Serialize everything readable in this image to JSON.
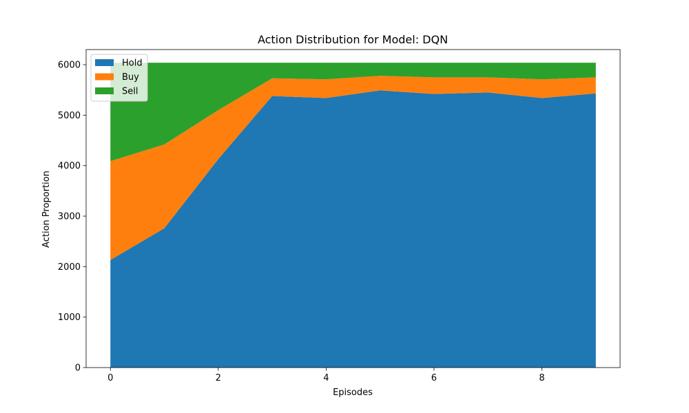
{
  "chart_data": {
    "type": "area",
    "stacked": true,
    "title": "Action Distribution for Model: DQN",
    "xlabel": "Episodes",
    "ylabel": "Action Proportion",
    "x": [
      0,
      1,
      2,
      3,
      4,
      5,
      6,
      7,
      8,
      9
    ],
    "xlim": [
      -0.45,
      9.45
    ],
    "ylim": [
      0,
      6300
    ],
    "xticks": [
      0,
      2,
      4,
      6,
      8
    ],
    "yticks": [
      0,
      1000,
      2000,
      3000,
      4000,
      5000,
      6000
    ],
    "series": [
      {
        "name": "Hold",
        "color": "#1f77b4",
        "values": [
          2130,
          2760,
          4130,
          5380,
          5340,
          5490,
          5420,
          5450,
          5340,
          5430
        ]
      },
      {
        "name": "Buy",
        "color": "#ff7f0e",
        "values": [
          1960,
          1660,
          970,
          350,
          370,
          290,
          330,
          300,
          370,
          320
        ]
      },
      {
        "name": "Sell",
        "color": "#2ca02c",
        "values": [
          1950,
          1620,
          940,
          310,
          330,
          260,
          290,
          290,
          330,
          290
        ]
      }
    ],
    "legend_position": "top-left",
    "grid": false
  }
}
